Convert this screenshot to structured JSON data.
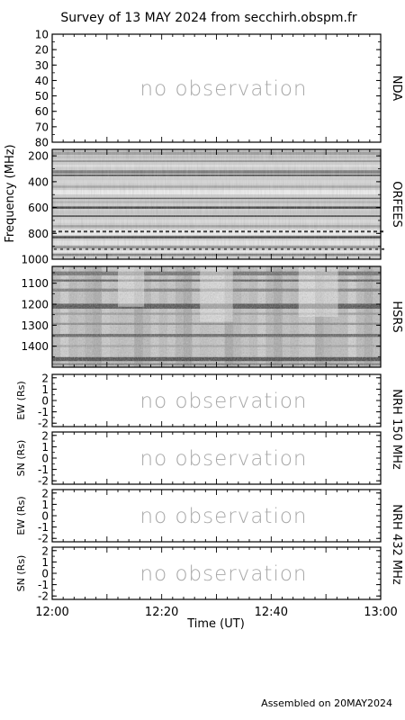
{
  "title": "Survey of 13 MAY 2024 from secchirh.obspm.fr",
  "footer": "Assembled on 20MAY2024",
  "no_observation_text": "no observation",
  "chart_data": {
    "type": "heatmap",
    "time_axis": {
      "label": "Time (UT)",
      "range": [
        "12:00",
        "13:00"
      ],
      "ticks": [
        "12:00",
        "12:20",
        "12:40",
        "13:00"
      ]
    },
    "frequency_axis_label": "Frequency (MHz)",
    "panels": [
      {
        "id": "nda",
        "instrument": "NDA",
        "status": "no observation",
        "yrange": [
          10,
          80
        ],
        "yticks": [
          10,
          20,
          30,
          40,
          50,
          60,
          70,
          80
        ]
      },
      {
        "id": "orfees",
        "instrument": "ORFEES",
        "status": "observed",
        "yrange": [
          150,
          1000
        ],
        "yticks": [
          200,
          400,
          600,
          800,
          1000
        ]
      },
      {
        "id": "hsrs",
        "instrument": "HSRS",
        "status": "observed",
        "yrange": [
          1020,
          1500
        ],
        "yticks": [
          1100,
          1200,
          1300,
          1400
        ]
      },
      {
        "id": "nrh150-ew",
        "instrument": "NRH 150 MHz",
        "ylabel": "EW (Rs)",
        "status": "no observation",
        "yrange": [
          -2.3,
          2.3
        ],
        "yticks": [
          2,
          1,
          0,
          -1,
          -2
        ]
      },
      {
        "id": "nrh150-sn",
        "instrument": "NRH 150 MHz",
        "ylabel": "SN (Rs)",
        "status": "no observation",
        "yrange": [
          -2.3,
          2.3
        ],
        "yticks": [
          2,
          1,
          0,
          -1,
          -2
        ]
      },
      {
        "id": "nrh432-ew",
        "instrument": "NRH 432 MHz",
        "ylabel": "EW (Rs)",
        "status": "no observation",
        "yrange": [
          -2.3,
          2.3
        ],
        "yticks": [
          2,
          1,
          0,
          -1,
          -2
        ]
      },
      {
        "id": "nrh432-sn",
        "instrument": "NRH 432 MHz",
        "ylabel": "SN (Rs)",
        "status": "no observation",
        "yrange": [
          -2.3,
          2.3
        ],
        "yticks": [
          2,
          1,
          0,
          -1,
          -2
        ]
      }
    ],
    "side_labels": [
      "NDA",
      "ORFEES",
      "HSRS",
      "NRH 150 MHz",
      "NRH 432 MHz"
    ]
  }
}
